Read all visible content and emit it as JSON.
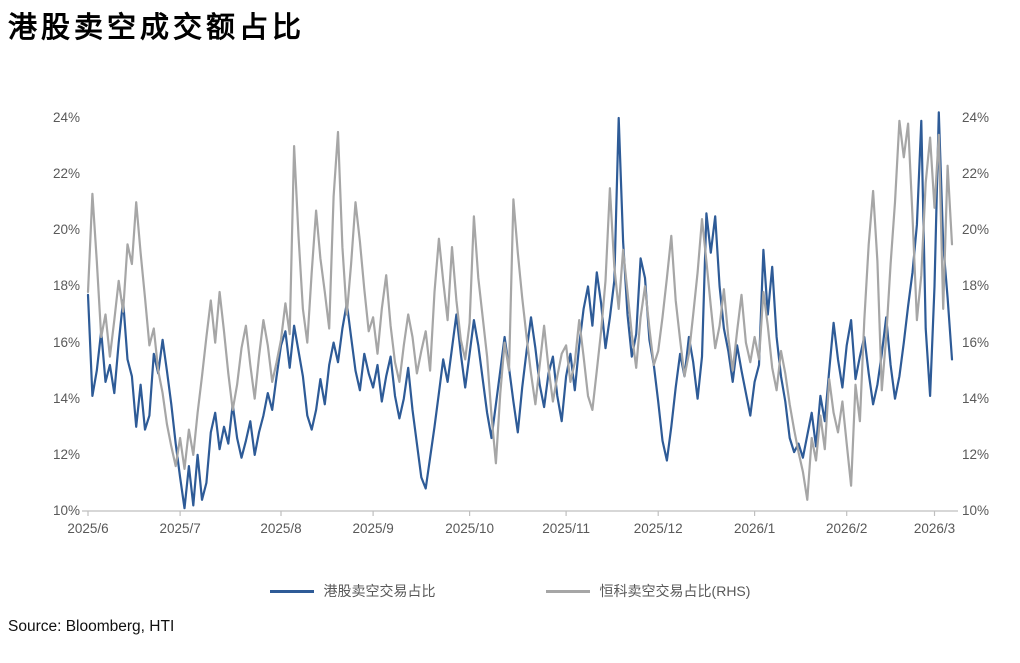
{
  "title": "港股卖空成交额占比",
  "source": "Source: Bloomberg, HTI",
  "legend": [
    {
      "label": "港股卖空交易占比",
      "color": "#2E5B97"
    },
    {
      "label": "恒科卖空交易占比(RHS)",
      "color": "#A6A6A6"
    }
  ],
  "chart_data": {
    "type": "line",
    "title": "港股卖空成交额占比",
    "grid": false,
    "legend_position": "bottom",
    "axis_color": "#BFBFBF",
    "label_color": "#595959",
    "y_axis": {
      "min": 10,
      "max": 24,
      "step": 2,
      "unit": "%"
    },
    "y_axis_right": {
      "min": 10,
      "max": 24,
      "step": 2,
      "unit": "%",
      "note": "RHS identical scale"
    },
    "x_labels": [
      "2025/6",
      "2025/7",
      "2025/8",
      "2025/9",
      "2025/10",
      "2025/11",
      "2025/12",
      "2026/1",
      "2026/2",
      "2026/3"
    ],
    "month_start_indices": [
      0,
      21,
      44,
      65,
      87,
      109,
      130,
      152,
      173,
      193
    ],
    "series": [
      {
        "name": "港股卖空交易占比",
        "axis": "left",
        "color": "#2E5B97",
        "values": [
          17.7,
          14.1,
          15.0,
          16.4,
          14.6,
          15.2,
          14.2,
          16.0,
          17.5,
          15.4,
          14.8,
          13.0,
          14.5,
          12.9,
          13.4,
          15.6,
          14.9,
          16.1,
          15.0,
          13.8,
          12.4,
          11.2,
          10.1,
          11.6,
          10.2,
          12.0,
          10.4,
          11.0,
          12.8,
          13.5,
          12.2,
          13.0,
          12.4,
          13.8,
          12.6,
          11.9,
          12.5,
          13.2,
          12.0,
          12.8,
          13.4,
          14.2,
          13.6,
          14.8,
          15.9,
          16.4,
          15.1,
          16.6,
          15.7,
          14.8,
          13.4,
          12.9,
          13.6,
          14.7,
          13.8,
          15.2,
          16.0,
          15.3,
          16.5,
          17.4,
          16.2,
          15.0,
          14.3,
          15.6,
          14.9,
          14.4,
          15.2,
          13.9,
          14.8,
          15.5,
          14.1,
          13.3,
          14.0,
          15.1,
          13.6,
          12.4,
          11.2,
          10.8,
          11.9,
          13.0,
          14.2,
          15.4,
          14.6,
          15.8,
          17.0,
          15.6,
          14.4,
          15.6,
          16.8,
          15.9,
          14.7,
          13.5,
          12.6,
          13.8,
          15.0,
          16.2,
          15.1,
          13.9,
          12.8,
          14.4,
          15.7,
          16.9,
          15.8,
          14.5,
          13.7,
          14.9,
          15.5,
          14.1,
          13.2,
          14.8,
          15.6,
          14.3,
          15.9,
          17.2,
          18.0,
          16.6,
          18.5,
          17.4,
          15.8,
          16.9,
          18.2,
          24.0,
          19.6,
          17.0,
          15.5,
          16.3,
          19.0,
          18.3,
          16.1,
          15.2,
          13.9,
          12.5,
          11.8,
          13.0,
          14.4,
          15.6,
          14.8,
          16.2,
          15.3,
          14.0,
          15.5,
          20.6,
          19.2,
          20.5,
          18.0,
          16.5,
          15.7,
          14.6,
          15.9,
          15.0,
          14.2,
          13.4,
          14.6,
          15.2,
          19.3,
          17.0,
          18.7,
          16.2,
          14.8,
          13.9,
          12.6,
          12.1,
          12.4,
          11.9,
          12.7,
          13.5,
          12.3,
          14.1,
          13.2,
          15.0,
          16.7,
          15.4,
          14.4,
          15.9,
          16.8,
          14.7,
          15.5,
          16.2,
          14.9,
          13.8,
          14.5,
          15.6,
          16.9,
          15.2,
          14.0,
          14.8,
          16.0,
          17.3,
          18.5,
          20.2,
          23.9,
          16.5,
          14.1,
          18.0,
          24.2,
          19.5,
          17.6,
          15.4
        ]
      },
      {
        "name": "恒科卖空交易占比(RHS)",
        "axis": "right",
        "color": "#A6A6A6",
        "values": [
          17.8,
          21.3,
          18.9,
          16.2,
          17.0,
          15.5,
          16.8,
          18.2,
          17.1,
          19.5,
          18.8,
          21.0,
          19.2,
          17.6,
          15.9,
          16.5,
          15.0,
          14.2,
          13.1,
          12.3,
          11.6,
          12.6,
          11.5,
          12.9,
          12.0,
          13.5,
          14.8,
          16.2,
          17.5,
          16.0,
          17.8,
          16.4,
          14.9,
          13.6,
          14.5,
          15.8,
          16.6,
          15.2,
          14.0,
          15.5,
          16.8,
          15.9,
          14.6,
          15.3,
          16.1,
          17.4,
          16.3,
          23.0,
          19.8,
          17.2,
          16.0,
          18.5,
          20.7,
          19.0,
          17.8,
          16.5,
          21.2,
          23.5,
          19.4,
          17.0,
          18.8,
          21.0,
          19.6,
          17.9,
          16.4,
          16.9,
          15.6,
          17.2,
          18.4,
          16.6,
          15.3,
          14.6,
          15.9,
          17.0,
          16.2,
          14.9,
          15.7,
          16.4,
          15.0,
          17.8,
          19.7,
          18.2,
          16.8,
          19.4,
          17.5,
          16.1,
          15.4,
          16.7,
          20.5,
          18.3,
          16.9,
          15.5,
          13.4,
          11.7,
          14.2,
          16.0,
          15.0,
          21.1,
          19.2,
          17.6,
          16.2,
          14.9,
          13.8,
          15.2,
          16.6,
          15.1,
          13.9,
          14.8,
          15.6,
          15.9,
          14.6,
          15.3,
          16.8,
          15.5,
          14.1,
          13.6,
          15.0,
          16.4,
          18.2,
          21.5,
          18.7,
          17.2,
          19.3,
          17.8,
          16.3,
          15.1,
          16.9,
          18.0,
          16.5,
          15.2,
          15.7,
          16.9,
          18.3,
          19.8,
          17.5,
          16.1,
          14.8,
          15.6,
          17.0,
          18.5,
          20.4,
          18.9,
          17.3,
          15.8,
          16.6,
          17.9,
          16.2,
          15.0,
          16.4,
          17.7,
          16.0,
          15.3,
          16.2,
          15.4,
          17.8,
          16.6,
          15.1,
          14.3,
          15.7,
          14.9,
          13.8,
          12.9,
          12.1,
          11.4,
          10.4,
          12.6,
          11.8,
          13.4,
          12.2,
          14.7,
          13.5,
          12.8,
          13.9,
          12.4,
          10.9,
          14.5,
          13.2,
          16.8,
          19.5,
          21.4,
          18.9,
          14.3,
          16.2,
          18.8,
          21.0,
          23.9,
          22.6,
          23.8,
          20.5,
          16.8,
          18.4,
          21.7,
          23.3,
          20.8,
          23.4,
          17.2,
          22.3,
          19.5
        ]
      }
    ]
  }
}
